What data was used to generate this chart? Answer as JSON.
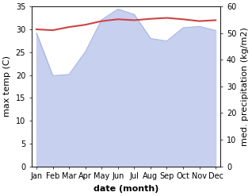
{
  "months": [
    "Jan",
    "Feb",
    "Mar",
    "Apr",
    "May",
    "Jun",
    "Jul",
    "Aug",
    "Sep",
    "Oct",
    "Nov",
    "Dec"
  ],
  "month_x": [
    0,
    1,
    2,
    3,
    4,
    5,
    6,
    7,
    8,
    9,
    10,
    11
  ],
  "max_temp": [
    30.0,
    29.8,
    30.5,
    31.0,
    31.8,
    32.2,
    32.0,
    32.3,
    32.5,
    32.2,
    31.8,
    32.0
  ],
  "precipitation": [
    50.0,
    34.0,
    34.5,
    43.0,
    55.0,
    59.0,
    57.0,
    48.0,
    47.0,
    52.0,
    52.5,
    51.0
  ],
  "temp_color": "#cc4444",
  "precip_fill_color": "#c8d0f0",
  "precip_line_color": "#aab8e0",
  "ylim_left": [
    0,
    35
  ],
  "ylim_right": [
    0,
    60
  ],
  "xlabel": "date (month)",
  "ylabel_left": "max temp (C)",
  "ylabel_right": "med. precipitation (kg/m2)",
  "label_fontsize": 8,
  "tick_fontsize": 7
}
